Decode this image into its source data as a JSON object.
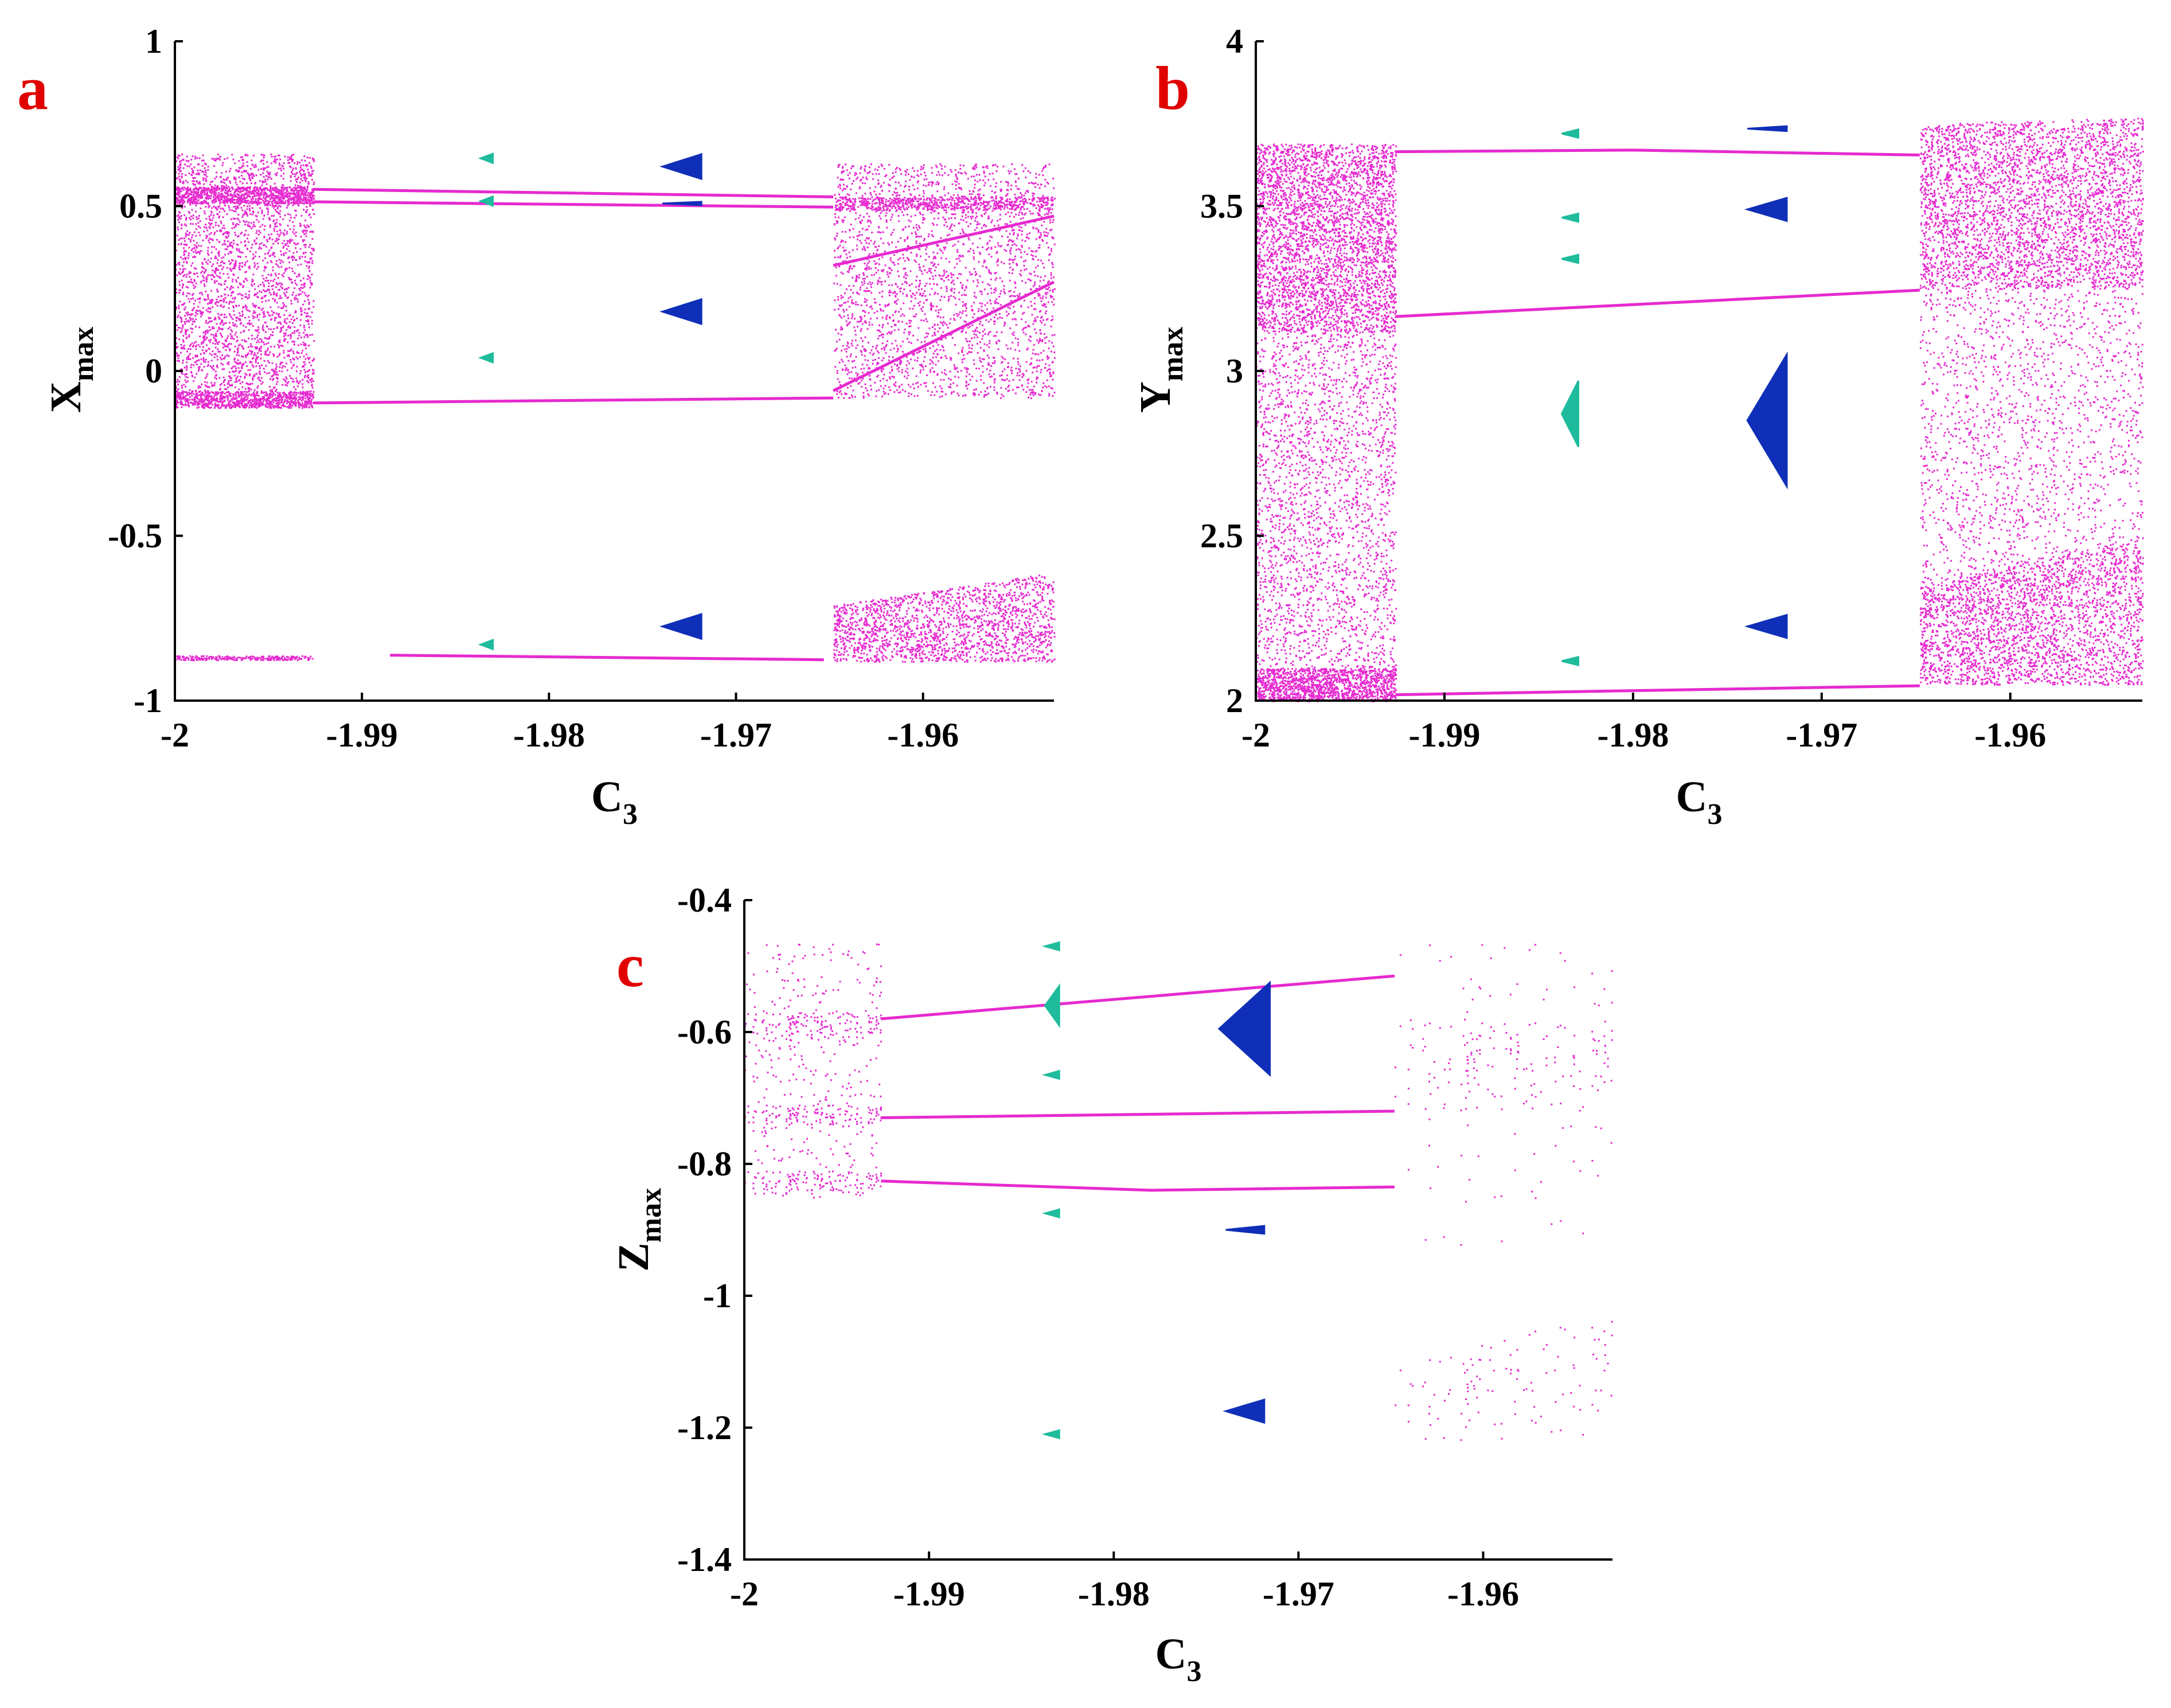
{
  "colors": {
    "chaos": "#e62ad0",
    "teal": "#1ebc9c",
    "blue": "#0f2fb8"
  },
  "chart_data": [
    {
      "id": "a",
      "type": "scatter",
      "panel_label": "a",
      "title": "",
      "xlabel": "C",
      "xlabel_sub": "3",
      "ylabel": "X",
      "ylabel_sub": "max",
      "xlim": [
        -2,
        -1.953
      ],
      "ylim": [
        -1,
        1
      ],
      "xticks": [
        -2,
        -1.99,
        -1.98,
        -1.97,
        -1.96
      ],
      "xtick_labels": [
        "-2",
        "-1.99",
        "-1.98",
        "-1.97",
        "-1.96"
      ],
      "yticks": [
        -1,
        -0.5,
        0,
        0.5,
        1
      ],
      "ytick_labels": [
        "-1",
        "-0.5",
        "0",
        "0.5",
        "1"
      ],
      "series": [
        {
          "name": "chaotic-band",
          "color": "chaos",
          "kind": "band",
          "x0": -2.0,
          "x1": -1.9926,
          "ylo0": -0.11,
          "ylo1": -0.11,
          "yhi0": 0.66,
          "yhi1": 0.66,
          "density": 3000
        },
        {
          "name": "chaotic-band",
          "color": "chaos",
          "kind": "band",
          "x0": -2.0,
          "x1": -1.9926,
          "ylo0": 0.51,
          "ylo1": 0.51,
          "yhi0": 0.56,
          "yhi1": 0.56,
          "density": 900
        },
        {
          "name": "chaotic-band",
          "color": "chaos",
          "kind": "band",
          "x0": -2.0,
          "x1": -1.9926,
          "ylo0": -0.11,
          "ylo1": -0.11,
          "yhi0": -0.06,
          "yhi1": -0.06,
          "density": 700
        },
        {
          "name": "chaotic-band",
          "color": "chaos",
          "kind": "band",
          "x0": -2.0,
          "x1": -1.9926,
          "ylo0": -0.875,
          "ylo1": -0.875,
          "yhi0": -0.862,
          "yhi1": -0.862,
          "density": 250
        },
        {
          "name": "chaotic-band",
          "color": "chaos",
          "kind": "band",
          "x0": -1.9648,
          "x1": -1.953,
          "ylo0": -0.08,
          "ylo1": -0.08,
          "yhi0": 0.63,
          "yhi1": 0.63,
          "density": 2600
        },
        {
          "name": "chaotic-band",
          "color": "chaos",
          "kind": "band",
          "x0": -1.9648,
          "x1": -1.953,
          "ylo0": 0.49,
          "ylo1": 0.49,
          "yhi0": 0.53,
          "yhi1": 0.53,
          "density": 600
        },
        {
          "name": "chaotic-band",
          "color": "chaos",
          "kind": "band",
          "x0": -1.9648,
          "x1": -1.953,
          "ylo0": -0.88,
          "ylo1": -0.88,
          "yhi0": -0.71,
          "yhi1": -0.61,
          "density": 1800
        },
        {
          "name": "periodic-branch",
          "color": "chaos",
          "kind": "line",
          "points": [
            [
              -1.9926,
              0.551
            ],
            [
              -1.9648,
              0.528
            ]
          ]
        },
        {
          "name": "periodic-branch",
          "color": "chaos",
          "kind": "line",
          "points": [
            [
              -1.9926,
              0.513
            ],
            [
              -1.9648,
              0.497
            ]
          ]
        },
        {
          "name": "periodic-branch",
          "color": "chaos",
          "kind": "line",
          "points": [
            [
              -1.9926,
              -0.097
            ],
            [
              -1.9648,
              -0.082
            ]
          ]
        },
        {
          "name": "periodic-branch",
          "color": "chaos",
          "kind": "line",
          "points": [
            [
              -1.9885,
              -0.862
            ],
            [
              -1.9653,
              -0.876
            ]
          ]
        },
        {
          "name": "periodic-branch",
          "color": "chaos",
          "kind": "line",
          "points": [
            [
              -1.9648,
              0.32
            ],
            [
              -1.953,
              0.47
            ]
          ]
        },
        {
          "name": "periodic-branch",
          "color": "chaos",
          "kind": "line",
          "points": [
            [
              -1.9648,
              -0.06
            ],
            [
              -1.953,
              0.27
            ]
          ]
        },
        {
          "name": "periodic-window",
          "color": "teal",
          "kind": "window",
          "x": -1.9833,
          "ys": [
            0.645,
            0.515,
            0.04,
            -0.83
          ],
          "w": 0.0006,
          "h": 0.028
        },
        {
          "name": "periodic-window",
          "color": "blue",
          "kind": "window",
          "x": -1.9728,
          "ys": [
            0.62,
            0.18,
            -0.775
          ],
          "w": 0.0019,
          "h": 0.075
        },
        {
          "name": "periodic-window",
          "color": "blue",
          "kind": "window",
          "x": -1.9728,
          "ys": [
            0.508
          ],
          "w": 0.0019,
          "h": 0.008
        }
      ]
    },
    {
      "id": "b",
      "type": "scatter",
      "panel_label": "b",
      "title": "",
      "xlabel": "C",
      "xlabel_sub": "3",
      "ylabel": "Y",
      "ylabel_sub": "max",
      "xlim": [
        -2,
        -1.953
      ],
      "ylim": [
        2,
        4
      ],
      "xticks": [
        -2,
        -1.99,
        -1.98,
        -1.97,
        -1.96
      ],
      "xtick_labels": [
        "-2",
        "-1.99",
        "-1.98",
        "-1.97",
        "-1.96"
      ],
      "yticks": [
        2,
        2.5,
        3,
        3.5,
        4
      ],
      "ytick_labels": [
        "2",
        "2.5",
        "3",
        "3.5",
        "4"
      ],
      "series": [
        {
          "name": "chaotic-band",
          "color": "chaos",
          "kind": "band",
          "x0": -2.0,
          "x1": -1.9926,
          "ylo0": 2.0,
          "ylo1": 2.0,
          "yhi0": 3.69,
          "yhi1": 3.69,
          "density": 3800
        },
        {
          "name": "chaotic-band",
          "color": "chaos",
          "kind": "band",
          "x0": -2.0,
          "x1": -1.9926,
          "ylo0": 3.12,
          "ylo1": 3.12,
          "yhi0": 3.69,
          "yhi1": 3.69,
          "density": 2400
        },
        {
          "name": "chaotic-band",
          "color": "chaos",
          "kind": "band",
          "x0": -2.0,
          "x1": -1.9926,
          "ylo0": 2.0,
          "ylo1": 2.0,
          "yhi0": 2.1,
          "yhi1": 2.1,
          "density": 1200
        },
        {
          "name": "chaotic-band",
          "color": "chaos",
          "kind": "band",
          "x0": -1.9648,
          "x1": -1.953,
          "ylo0": 2.05,
          "ylo1": 2.05,
          "yhi0": 3.75,
          "yhi1": 3.77,
          "density": 3400
        },
        {
          "name": "chaotic-band",
          "color": "chaos",
          "kind": "band",
          "x0": -1.9648,
          "x1": -1.953,
          "ylo0": 3.25,
          "ylo1": 3.25,
          "yhi0": 3.75,
          "yhi1": 3.77,
          "density": 2600
        },
        {
          "name": "chaotic-band",
          "color": "chaos",
          "kind": "band",
          "x0": -1.9648,
          "x1": -1.953,
          "ylo0": 2.05,
          "ylo1": 2.05,
          "yhi0": 2.35,
          "yhi1": 2.5,
          "density": 2000
        },
        {
          "name": "periodic-branch",
          "color": "chaos",
          "kind": "line",
          "points": [
            [
              -1.9926,
              3.665
            ],
            [
              -1.98,
              3.67
            ],
            [
              -1.9648,
              3.655
            ]
          ]
        },
        {
          "name": "periodic-branch",
          "color": "chaos",
          "kind": "line",
          "points": [
            [
              -1.9926,
              3.165
            ],
            [
              -1.9648,
              3.245
            ]
          ]
        },
        {
          "name": "periodic-branch",
          "color": "chaos",
          "kind": "line",
          "points": [
            [
              -1.9926,
              2.018
            ],
            [
              -1.9648,
              2.045
            ]
          ]
        },
        {
          "name": "periodic-window",
          "color": "teal",
          "kind": "window",
          "x": -1.9833,
          "ys": [
            3.72,
            3.465,
            3.34,
            2.12
          ],
          "w": 0.0008,
          "h": 0.025
        },
        {
          "name": "periodic-window",
          "color": "teal",
          "kind": "window",
          "x": -1.9833,
          "ys": [
            2.87
          ],
          "w": 0.0008,
          "h": 0.2
        },
        {
          "name": "periodic-window",
          "color": "blue",
          "kind": "window",
          "x": -1.9728,
          "ys": [
            3.735
          ],
          "w": 0.0019,
          "h": 0.015
        },
        {
          "name": "periodic-window",
          "color": "blue",
          "kind": "window",
          "x": -1.9728,
          "ys": [
            3.49,
            2.225
          ],
          "w": 0.0019,
          "h": 0.07
        },
        {
          "name": "periodic-window",
          "color": "blue",
          "kind": "window",
          "x": -1.9728,
          "ys": [
            2.85
          ],
          "w": 0.0019,
          "h": 0.4
        }
      ]
    },
    {
      "id": "c",
      "type": "scatter",
      "panel_label": "c",
      "title": "",
      "xlabel": "C",
      "xlabel_sub": "3",
      "ylabel": "Z",
      "ylabel_sub": "max",
      "xlim": [
        -2,
        -1.953
      ],
      "ylim": [
        -1.4,
        -0.4
      ],
      "xticks": [
        -2,
        -1.99,
        -1.98,
        -1.97,
        -1.96
      ],
      "xtick_labels": [
        "-2",
        "-1.99",
        "-1.98",
        "-1.97",
        "-1.96"
      ],
      "yticks": [
        -1.4,
        -1.2,
        -1,
        -0.8,
        -0.6,
        -0.4
      ],
      "ytick_labels": [
        "-1.4",
        "-1.2",
        "-1",
        "-0.8",
        "-0.6",
        "-0.4"
      ],
      "series": [
        {
          "name": "chaotic-band",
          "color": "chaos",
          "kind": "band",
          "x0": -2.0,
          "x1": -1.9926,
          "ylo0": -0.85,
          "ylo1": -0.85,
          "yhi0": -0.465,
          "yhi1": -0.465,
          "density": 3000
        },
        {
          "name": "chaotic-band",
          "color": "chaos",
          "kind": "band",
          "x0": -2.0,
          "x1": -1.9926,
          "ylo0": -0.61,
          "ylo1": -0.61,
          "yhi0": -0.57,
          "yhi1": -0.57,
          "density": 800
        },
        {
          "name": "chaotic-band",
          "color": "chaos",
          "kind": "band",
          "x0": -2.0,
          "x1": -1.9926,
          "ylo0": -0.745,
          "ylo1": -0.745,
          "yhi0": -0.71,
          "yhi1": -0.71,
          "density": 700
        },
        {
          "name": "chaotic-band",
          "color": "chaos",
          "kind": "band",
          "x0": -2.0,
          "x1": -1.9926,
          "ylo0": -0.845,
          "ylo1": -0.845,
          "yhi0": -0.81,
          "yhi1": -0.81,
          "density": 700
        },
        {
          "name": "chaotic-band",
          "color": "chaos",
          "kind": "band",
          "x0": -1.9648,
          "x1": -1.953,
          "ylo0": -0.93,
          "ylo1": -0.93,
          "yhi0": -0.465,
          "yhi1": -0.465,
          "density": 3000
        },
        {
          "name": "chaotic-band",
          "color": "chaos",
          "kind": "band",
          "x0": -1.9648,
          "x1": -1.953,
          "ylo0": -0.72,
          "ylo1": -0.72,
          "yhi0": -0.585,
          "yhi1": -0.585,
          "density": 1500
        },
        {
          "name": "chaotic-band",
          "color": "chaos",
          "kind": "band",
          "x0": -1.9648,
          "x1": -1.953,
          "ylo0": -1.22,
          "ylo1": -1.22,
          "yhi0": -1.11,
          "yhi1": -1.02,
          "density": 1600
        },
        {
          "name": "periodic-branch",
          "color": "chaos",
          "kind": "line",
          "points": [
            [
              -1.9926,
              -0.58
            ],
            [
              -1.9648,
              -0.515
            ]
          ]
        },
        {
          "name": "periodic-branch",
          "color": "chaos",
          "kind": "line",
          "points": [
            [
              -1.9926,
              -0.73
            ],
            [
              -1.9648,
              -0.72
            ]
          ]
        },
        {
          "name": "periodic-branch",
          "color": "chaos",
          "kind": "line",
          "points": [
            [
              -1.9926,
              -0.826
            ],
            [
              -1.978,
              -0.84
            ],
            [
              -1.9648,
              -0.835
            ]
          ]
        },
        {
          "name": "periodic-window",
          "color": "teal",
          "kind": "window",
          "x": -1.9833,
          "ys": [
            -0.47,
            -0.665,
            -0.875,
            -1.21
          ],
          "w": 0.0007,
          "h": 0.012
        },
        {
          "name": "periodic-window",
          "color": "teal",
          "kind": "window",
          "x": -1.9833,
          "ys": [
            -0.56
          ],
          "w": 0.0007,
          "h": 0.06
        },
        {
          "name": "periodic-window",
          "color": "blue",
          "kind": "window",
          "x": -1.9728,
          "ys": [
            -0.9
          ],
          "w": 0.0019,
          "h": 0.012
        },
        {
          "name": "periodic-window",
          "color": "blue",
          "kind": "window",
          "x": -1.9728,
          "ys": [
            -1.175
          ],
          "w": 0.0019,
          "h": 0.035
        },
        {
          "name": "periodic-window",
          "color": "blue",
          "kind": "window",
          "x": -1.9728,
          "ys": [
            -0.595
          ],
          "w": 0.0025,
          "h": 0.14
        }
      ]
    }
  ]
}
